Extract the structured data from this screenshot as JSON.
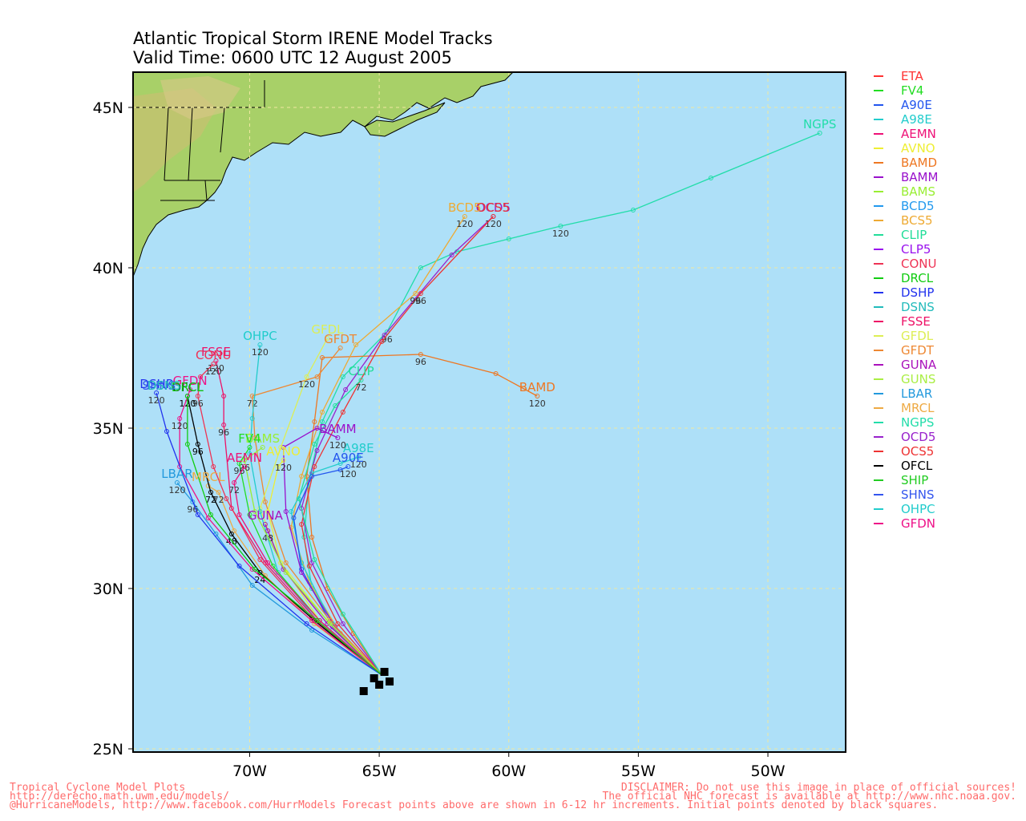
{
  "title": {
    "line1": "Atlantic Tropical Storm IRENE Model Tracks",
    "line2": "Valid Time: 0600 UTC 12 August 2005"
  },
  "axes": {
    "lat_labels": [
      "45N",
      "40N",
      "35N",
      "30N",
      "25N"
    ],
    "lon_labels": [
      "70W",
      "65W",
      "60W",
      "55W",
      "50W"
    ],
    "lat_values": [
      45,
      40,
      35,
      30,
      25
    ],
    "lon_values": [
      -70,
      -65,
      -60,
      -55,
      -50
    ],
    "lon_range": [
      -74.5,
      -47
    ],
    "lat_range": [
      24.9,
      46.1
    ]
  },
  "colors": {
    "ocean": "#aee0f8",
    "land": "#a8d068",
    "grid": "#f0e8a0"
  },
  "legend": [
    {
      "name": "ETA",
      "color": "#ff3333"
    },
    {
      "name": "FV4",
      "color": "#22dd22"
    },
    {
      "name": "A90E",
      "color": "#2255ee"
    },
    {
      "name": "A98E",
      "color": "#22cccc"
    },
    {
      "name": "AEMN",
      "color": "#ee1177"
    },
    {
      "name": "AVNO",
      "color": "#eeee33"
    },
    {
      "name": "BAMD",
      "color": "#ee7722"
    },
    {
      "name": "BAMM",
      "color": "#9911cc"
    },
    {
      "name": "BAMS",
      "color": "#99ee33"
    },
    {
      "name": "BCD5",
      "color": "#2299ee"
    },
    {
      "name": "BCS5",
      "color": "#eeaa33"
    },
    {
      "name": "CLIP",
      "color": "#22dd99"
    },
    {
      "name": "CLP5",
      "color": "#9911ee"
    },
    {
      "name": "CONU",
      "color": "#ee3355"
    },
    {
      "name": "DRCL",
      "color": "#11cc11"
    },
    {
      "name": "DSHP",
      "color": "#2233ee"
    },
    {
      "name": "DSNS",
      "color": "#22bbbb"
    },
    {
      "name": "FSSE",
      "color": "#ee1166"
    },
    {
      "name": "GFDL",
      "color": "#ddee55"
    },
    {
      "name": "GFDT",
      "color": "#ee8833"
    },
    {
      "name": "GUNA",
      "color": "#aa11bb"
    },
    {
      "name": "GUNS",
      "color": "#aaee44"
    },
    {
      "name": "LBAR",
      "color": "#2299dd"
    },
    {
      "name": "MRCL",
      "color": "#eeaa44"
    },
    {
      "name": "NGPS",
      "color": "#22ddaa"
    },
    {
      "name": "OCD5",
      "color": "#9922cc"
    },
    {
      "name": "OCS5",
      "color": "#ee3333"
    },
    {
      "name": "OFCL",
      "color": "#000000"
    },
    {
      "name": "SHIP",
      "color": "#22cc22"
    },
    {
      "name": "SHNS",
      "color": "#3355ee"
    },
    {
      "name": "OHPC",
      "color": "#22cccc"
    },
    {
      "name": "GFDN",
      "color": "#ee1188"
    }
  ],
  "tracks": [
    {
      "name": "NGPS",
      "color": "#22ddaa",
      "label": "NGPS",
      "points": [
        [
          -64.9,
          27.3
        ],
        [
          -66.5,
          28.6
        ],
        [
          -67.6,
          30.0
        ],
        [
          -67.9,
          31.6
        ],
        [
          -67.7,
          33.4
        ],
        [
          -67.2,
          35.2
        ],
        [
          -66.4,
          36.6
        ],
        [
          -64.7,
          38.0
        ],
        [
          -63.4,
          40.0
        ],
        [
          -62.0,
          40.5
        ],
        [
          -60.0,
          40.9
        ],
        [
          -58.0,
          41.3
        ],
        [
          -55.2,
          41.8
        ],
        [
          -52.2,
          42.8
        ],
        [
          -48.0,
          44.2
        ]
      ],
      "hour_labels": [
        {
          "at": 7,
          "text": "96"
        },
        {
          "at": 11,
          "text": "120"
        }
      ]
    },
    {
      "name": "BAMD",
      "color": "#ee7722",
      "label": "BAMD",
      "points": [
        [
          -64.9,
          27.3
        ],
        [
          -66.0,
          28.6
        ],
        [
          -67.0,
          30.0
        ],
        [
          -67.6,
          31.6
        ],
        [
          -67.8,
          33.5
        ],
        [
          -67.5,
          35.2
        ],
        [
          -67.2,
          37.2
        ],
        [
          -63.4,
          37.3
        ],
        [
          -60.5,
          36.7
        ],
        [
          -58.9,
          36.0
        ]
      ],
      "hour_labels": [
        {
          "at": 7,
          "text": "96"
        },
        {
          "at": 9,
          "text": "120"
        }
      ]
    },
    {
      "name": "OCD5",
      "color": "#9922cc",
      "label": "OCD5",
      "points": [
        [
          -64.9,
          27.3
        ],
        [
          -66.4,
          28.9
        ],
        [
          -67.6,
          30.8
        ],
        [
          -68.0,
          32.5
        ],
        [
          -67.4,
          34.3
        ],
        [
          -66.3,
          36.2
        ],
        [
          -64.8,
          37.9
        ],
        [
          -62.2,
          40.4
        ],
        [
          -60.6,
          41.6
        ]
      ],
      "hour_labels": [
        {
          "at": 8,
          "text": "120"
        }
      ]
    },
    {
      "name": "OCS5",
      "color": "#ee3333",
      "label": "OCS5",
      "points": [
        [
          -64.9,
          27.3
        ],
        [
          -66.6,
          28.9
        ],
        [
          -67.7,
          30.7
        ],
        [
          -68.0,
          32.0
        ],
        [
          -67.5,
          33.8
        ],
        [
          -66.4,
          35.5
        ],
        [
          -64.9,
          37.7
        ],
        [
          -63.4,
          39.2
        ],
        [
          -60.6,
          41.6
        ]
      ],
      "hour_labels": [
        {
          "at": 7,
          "text": "96"
        }
      ]
    },
    {
      "name": "BCD5",
      "color": "#eeaa33",
      "label": "BCD5",
      "points": [
        [
          -64.9,
          27.3
        ],
        [
          -66.5,
          28.6
        ],
        [
          -67.7,
          30.2
        ],
        [
          -68.4,
          31.9
        ],
        [
          -68.0,
          33.5
        ],
        [
          -67.2,
          35.5
        ],
        [
          -65.9,
          37.6
        ],
        [
          -63.6,
          39.2
        ],
        [
          -61.7,
          41.6
        ]
      ],
      "hour_labels": [
        {
          "at": 7,
          "text": "96"
        },
        {
          "at": 8,
          "text": "120"
        }
      ]
    },
    {
      "name": "CLIP",
      "color": "#22dd99",
      "label": "CLIP",
      "points": [
        [
          -64.9,
          27.3
        ],
        [
          -66.4,
          29.2
        ],
        [
          -67.5,
          30.9
        ],
        [
          -68.1,
          32.8
        ],
        [
          -67.5,
          34.5
        ],
        [
          -66.7,
          35.7
        ],
        [
          -65.7,
          36.5
        ]
      ],
      "hour_labels": [
        {
          "at": 6,
          "text": "72"
        }
      ]
    },
    {
      "name": "A98E",
      "color": "#22cccc",
      "label": "A98E",
      "points": [
        [
          -64.9,
          27.3
        ],
        [
          -66.8,
          28.9
        ],
        [
          -68.0,
          30.8
        ],
        [
          -68.4,
          32.4
        ],
        [
          -67.6,
          33.6
        ],
        [
          -66.5,
          33.9
        ],
        [
          -65.8,
          34.1
        ]
      ],
      "hour_labels": [
        {
          "at": 6,
          "text": "120"
        }
      ]
    },
    {
      "name": "A90E",
      "color": "#2255ee",
      "label": "A90E",
      "points": [
        [
          -64.9,
          27.3
        ],
        [
          -66.8,
          28.8
        ],
        [
          -68.0,
          30.6
        ],
        [
          -68.3,
          32.2
        ],
        [
          -67.6,
          33.5
        ],
        [
          -66.5,
          33.7
        ],
        [
          -66.2,
          33.8
        ]
      ],
      "hour_labels": [
        {
          "at": 6,
          "text": "120"
        }
      ]
    },
    {
      "name": "BAMM",
      "color": "#9911cc",
      "label": "BAMM",
      "points": [
        [
          -64.9,
          27.3
        ],
        [
          -66.7,
          28.8
        ],
        [
          -68.0,
          30.5
        ],
        [
          -68.6,
          32.4
        ],
        [
          -68.7,
          34.4
        ],
        [
          -67.4,
          35.0
        ],
        [
          -66.6,
          34.7
        ]
      ],
      "hour_labels": [
        {
          "at": 6,
          "text": "120"
        }
      ]
    },
    {
      "name": "GFDT",
      "color": "#ee8833",
      "label": "GFDT",
      "points": [
        [
          -64.9,
          27.3
        ],
        [
          -66.9,
          29.0
        ],
        [
          -68.6,
          30.8
        ],
        [
          -69.4,
          32.7
        ],
        [
          -69.8,
          34.7
        ],
        [
          -69.9,
          36.0
        ],
        [
          -67.4,
          36.6
        ],
        [
          -66.5,
          37.5
        ]
      ],
      "hour_labels": [
        {
          "at": 5,
          "text": "72"
        }
      ]
    },
    {
      "name": "GFDL",
      "color": "#ddee55",
      "label": "GFDL",
      "points": [
        [
          -64.9,
          27.3
        ],
        [
          -67.0,
          29.0
        ],
        [
          -68.8,
          30.8
        ],
        [
          -69.6,
          32.5
        ],
        [
          -68.8,
          34.4
        ],
        [
          -67.8,
          36.6
        ],
        [
          -67.0,
          37.8
        ]
      ],
      "hour_labels": [
        {
          "at": 5,
          "text": "120"
        }
      ]
    },
    {
      "name": "OHPC",
      "color": "#22cccc",
      "label": "OHPC",
      "points": [
        [
          -64.9,
          27.3
        ],
        [
          -67.2,
          28.8
        ],
        [
          -68.9,
          30.5
        ],
        [
          -69.6,
          32.4
        ],
        [
          -70.0,
          34.2
        ],
        [
          -69.9,
          35.3
        ],
        [
          -69.6,
          37.6
        ]
      ],
      "hour_labels": [
        {
          "at": 6,
          "text": "120"
        }
      ]
    },
    {
      "name": "AVNO",
      "color": "#eeee33",
      "label": "AVNO",
      "points": [
        [
          -64.9,
          27.3
        ],
        [
          -67.3,
          29.0
        ],
        [
          -68.8,
          30.8
        ],
        [
          -69.3,
          32.4
        ],
        [
          -68.9,
          33.8
        ],
        [
          -68.7,
          34.0
        ]
      ],
      "hour_labels": [
        {
          "at": 5,
          "text": "120"
        }
      ]
    },
    {
      "name": "GUNA",
      "color": "#aa11bb",
      "label": "GUNA",
      "points": [
        [
          -64.9,
          27.3
        ],
        [
          -67.0,
          28.9
        ],
        [
          -68.7,
          30.6
        ],
        [
          -69.3,
          31.8
        ],
        [
          -69.4,
          32.0
        ]
      ],
      "hour_labels": [
        {
          "at": 3,
          "text": "48"
        }
      ]
    },
    {
      "name": "BAMS",
      "color": "#99ee33",
      "label": "BAMS",
      "points": [
        [
          -64.9,
          27.3
        ],
        [
          -66.9,
          28.9
        ],
        [
          -68.6,
          30.5
        ],
        [
          -69.8,
          32.4
        ],
        [
          -70.2,
          34.0
        ],
        [
          -69.5,
          34.4
        ]
      ],
      "hour_labels": [
        {
          "at": 4,
          "text": "96"
        }
      ]
    },
    {
      "name": "FV4",
      "color": "#22dd22",
      "label": "FV4",
      "points": [
        [
          -64.9,
          27.3
        ],
        [
          -67.3,
          29.0
        ],
        [
          -69.1,
          30.7
        ],
        [
          -70.0,
          32.3
        ],
        [
          -70.4,
          33.9
        ],
        [
          -70.0,
          34.4
        ]
      ],
      "hour_labels": [
        {
          "at": 4,
          "text": "96"
        }
      ]
    },
    {
      "name": "AEMN",
      "color": "#ee1177",
      "label": "AEMN",
      "points": [
        [
          -64.9,
          27.3
        ],
        [
          -67.3,
          29.0
        ],
        [
          -69.3,
          30.8
        ],
        [
          -70.4,
          32.3
        ],
        [
          -70.6,
          33.3
        ],
        [
          -70.2,
          33.8
        ]
      ],
      "hour_labels": [
        {
          "at": 4,
          "text": "72"
        }
      ]
    },
    {
      "name": "MRCL",
      "color": "#eeaa44",
      "label": "MRCL",
      "points": [
        [
          -64.9,
          27.3
        ],
        [
          -67.5,
          28.9
        ],
        [
          -69.4,
          30.4
        ],
        [
          -70.6,
          31.8
        ],
        [
          -71.2,
          33.0
        ],
        [
          -71.6,
          33.2
        ]
      ],
      "hour_labels": [
        {
          "at": 4,
          "text": "72"
        }
      ]
    },
    {
      "name": "LBAR",
      "color": "#2299dd",
      "label": "LBAR",
      "points": [
        [
          -64.9,
          27.3
        ],
        [
          -67.6,
          28.7
        ],
        [
          -69.9,
          30.1
        ],
        [
          -71.3,
          31.7
        ],
        [
          -72.2,
          32.7
        ],
        [
          -72.8,
          33.3
        ]
      ],
      "hour_labels": [
        {
          "at": 4,
          "text": "96"
        },
        {
          "at": 5,
          "text": "120"
        }
      ]
    },
    {
      "name": "FSSE",
      "color": "#ee1166",
      "label": "FSSE",
      "points": [
        [
          -64.9,
          27.3
        ],
        [
          -67.4,
          29.0
        ],
        [
          -69.4,
          30.8
        ],
        [
          -70.7,
          32.5
        ],
        [
          -71.0,
          35.1
        ],
        [
          -71.0,
          36.0
        ],
        [
          -71.3,
          37.1
        ]
      ],
      "hour_labels": [
        {
          "at": 4,
          "text": "96"
        },
        {
          "at": 6,
          "text": "120"
        }
      ]
    },
    {
      "name": "CONU",
      "color": "#ee3355",
      "label": "CONU",
      "points": [
        [
          -64.9,
          27.3
        ],
        [
          -67.6,
          29.1
        ],
        [
          -69.6,
          30.9
        ],
        [
          -70.9,
          32.8
        ],
        [
          -71.4,
          33.8
        ],
        [
          -72.0,
          36.0
        ],
        [
          -71.9,
          36.6
        ],
        [
          -71.4,
          37.0
        ]
      ],
      "hour_labels": [
        {
          "at": 5,
          "text": "96"
        },
        {
          "at": 7,
          "text": "120"
        }
      ]
    },
    {
      "name": "OFCL",
      "color": "#000000",
      "label": "OFCL",
      "points": [
        [
          -64.9,
          27.3
        ],
        [
          -67.5,
          29.0
        ],
        [
          -69.6,
          30.5
        ],
        [
          -70.7,
          31.7
        ],
        [
          -71.5,
          33.0
        ],
        [
          -72.0,
          34.5
        ],
        [
          -72.4,
          36.0
        ]
      ],
      "hour_labels": [
        {
          "at": 2,
          "text": "24"
        },
        {
          "at": 3,
          "text": "48"
        },
        {
          "at": 4,
          "text": "72"
        },
        {
          "at": 5,
          "text": "96"
        },
        {
          "at": 6,
          "text": "120"
        }
      ]
    },
    {
      "name": "GFDN",
      "color": "#ee1188",
      "label": "GFDN",
      "points": [
        [
          -64.9,
          27.3
        ],
        [
          -67.6,
          29.0
        ],
        [
          -69.9,
          30.6
        ],
        [
          -71.6,
          32.2
        ],
        [
          -72.7,
          33.8
        ],
        [
          -72.7,
          35.3
        ],
        [
          -72.3,
          36.2
        ]
      ],
      "hour_labels": [
        {
          "at": 5,
          "text": "120"
        }
      ]
    },
    {
      "name": "DSHP",
      "color": "#2233ee",
      "label": "DSHP",
      "points": [
        [
          -64.9,
          27.3
        ],
        [
          -67.8,
          28.9
        ],
        [
          -70.4,
          30.7
        ],
        [
          -72.0,
          32.3
        ],
        [
          -73.2,
          34.9
        ],
        [
          -73.6,
          36.1
        ]
      ],
      "hour_labels": [
        {
          "at": 5,
          "text": "120"
        }
      ]
    },
    {
      "name": "DRCL",
      "color": "#11cc11",
      "label": "DRCL",
      "points": [
        [
          -64.9,
          27.3
        ],
        [
          -67.4,
          29.0
        ],
        [
          -69.8,
          30.6
        ],
        [
          -71.5,
          32.3
        ],
        [
          -72.4,
          34.5
        ],
        [
          -72.4,
          36.0
        ]
      ],
      "hour_labels": []
    }
  ],
  "initial_squares": [
    [
      -65.6,
      26.8
    ],
    [
      -65.0,
      27.0
    ],
    [
      -64.8,
      27.4
    ],
    [
      -64.6,
      27.1
    ],
    [
      -65.2,
      27.2
    ]
  ],
  "track_labels_extra": {
    "SHNS": "SHNS",
    "DSNS": "DSNS"
  },
  "footer": {
    "left_lines": [
      "Tropical Cyclone Model Plots",
      "http://derecho.math.uwm.edu/models/",
      "@HurricaneModels, http://www.facebook.com/HurrModels  Forecast points above are shown in 6-12 hr increments. Initial points denoted by black squares."
    ],
    "right_lines": [
      "DISCLAIMER: Do not use this image in place of official sources!",
      "The official NHC forecast is available at http://www.nhc.noaa.gov."
    ]
  }
}
